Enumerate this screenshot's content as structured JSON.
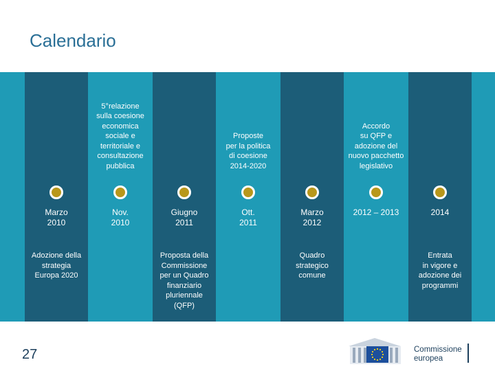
{
  "title": "Calendario",
  "page_number": "27",
  "logo": {
    "line1": "Commissione",
    "line2": "europea"
  },
  "colors": {
    "band_light": "#1f9bb6",
    "band_dark": "#1c5d78",
    "milestone_dot": "#b8971b",
    "title": "#2a6f96"
  },
  "timeline": [
    {
      "date": "Marzo\n2010",
      "top": "",
      "bottom": "Adozione della\nstrategia\nEuropa 2020"
    },
    {
      "date": "Nov.\n2010",
      "top": "5°relazione\nsulla coesione\neconomica\nsociale e\nterritoriale e\nconsultazione\npubblica",
      "bottom": ""
    },
    {
      "date": "Giugno\n2011",
      "top": "",
      "bottom": "Proposta della\nCommissione\nper un Quadro\nfinanziario\npluriennale\n(QFP)"
    },
    {
      "date": "Ott.\n2011",
      "top": "Proposte\nper la politica\ndi coesione\n2014-2020",
      "bottom": ""
    },
    {
      "date": "Marzo\n2012",
      "top": "",
      "bottom": "Quadro\nstrategico\ncomune"
    },
    {
      "date": "2012 – 2013",
      "top": "Accordo\nsu QFP e\nadozione del\nnuovo pacchetto\nlegislativo",
      "bottom": ""
    },
    {
      "date": "2014",
      "top": "",
      "bottom": "Entrata\nin vigore e\nadozione dei\nprogrammi"
    }
  ]
}
